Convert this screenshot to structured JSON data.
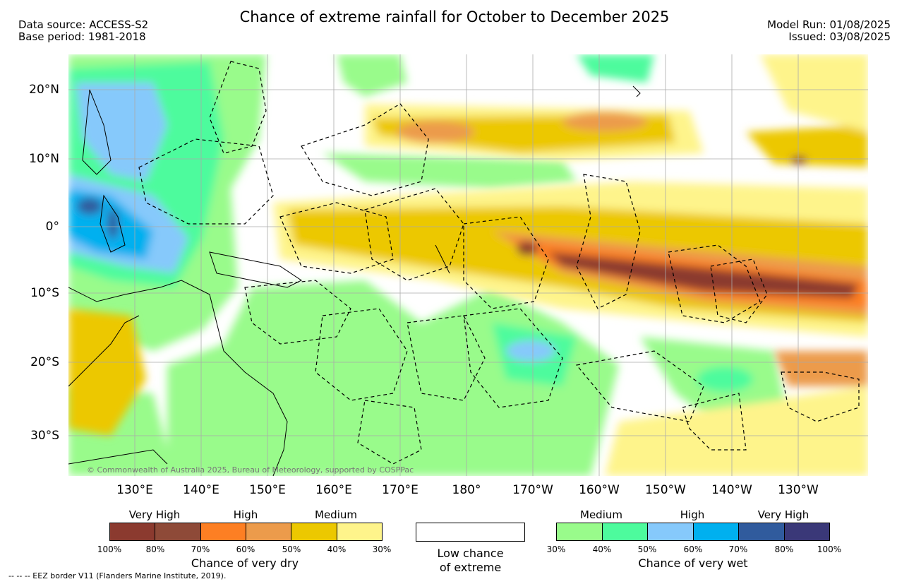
{
  "title": "Chance of extreme rainfall for October to December 2025",
  "meta_left": {
    "data_source": "Data source: ACCESS-S2",
    "base_period": "Base period: 1981-2018"
  },
  "meta_right": {
    "model_run": "Model Run: 01/08/2025",
    "issued": "Issued: 03/08/2025"
  },
  "lat_labels": [
    "20°N",
    "10°N",
    "0°",
    "10°S",
    "20°S",
    "30°S"
  ],
  "lon_labels": [
    "130°E",
    "140°E",
    "150°E",
    "160°E",
    "170°E",
    "180°",
    "170°W",
    "160°W",
    "150°W",
    "140°W",
    "130°W"
  ],
  "copyright": "© Commonwealth of Australia 2025, Bureau of Meteorology, supported by COSPPac",
  "dry_legend": {
    "categories": [
      "Very High",
      "High",
      "Medium"
    ],
    "colors": [
      "#8b3a2f",
      "#8e4a38",
      "#fd7f23",
      "#ec9b4b",
      "#ecc800",
      "#fef48b"
    ],
    "ticks": [
      "100%",
      "80%",
      "70%",
      "60%",
      "50%",
      "40%",
      "30%"
    ],
    "title": "Chance of very dry"
  },
  "low_legend": {
    "line1": "Low chance",
    "line2": "of extreme"
  },
  "wet_legend": {
    "categories": [
      "Medium",
      "High",
      "Very High"
    ],
    "colors": [
      "#99fb8b",
      "#4dfb9d",
      "#86c9fb",
      "#00b0ef",
      "#305b9d",
      "#3a3878"
    ],
    "ticks": [
      "30%",
      "40%",
      "50%",
      "60%",
      "70%",
      "80%",
      "100%"
    ],
    "title": "Chance of very wet"
  },
  "eez_note": "-- -- -- EEZ border V11 (Flanders Marine Institute, 2019)."
}
